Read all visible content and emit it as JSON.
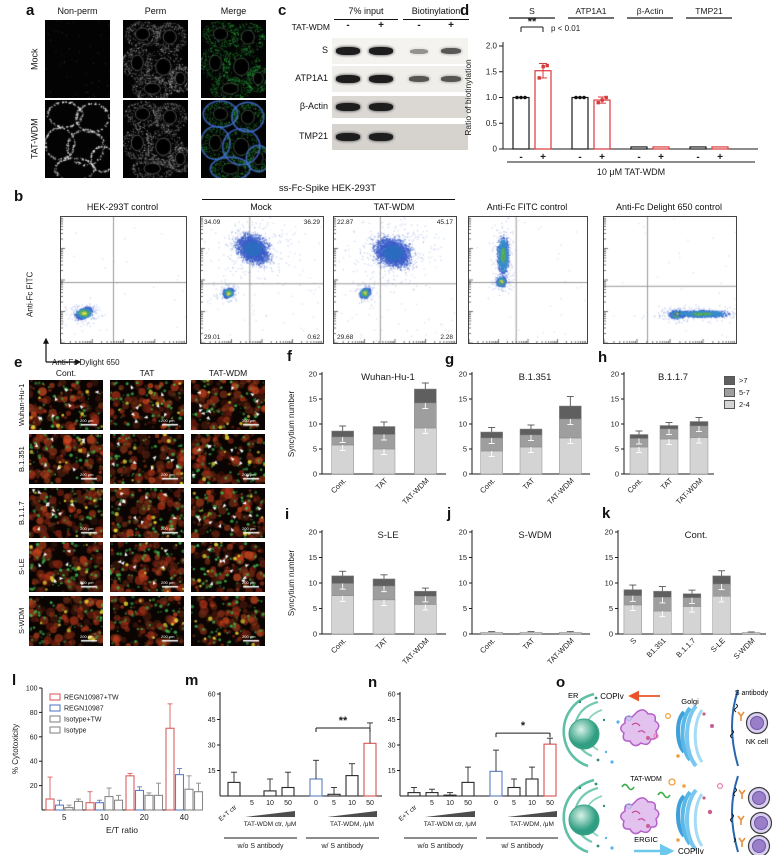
{
  "figure": {
    "panel_labels": {
      "a": "a",
      "b": "b",
      "c": "c",
      "d": "d",
      "e": "e",
      "f": "f",
      "g": "g",
      "h": "h",
      "i": "i",
      "j": "j",
      "k": "k",
      "l": "l",
      "m": "m",
      "n": "n",
      "o": "o"
    },
    "a": {
      "columns": [
        "Non-perm",
        "Perm",
        "Merge"
      ],
      "rows": [
        "Mock",
        "TAT-WDM"
      ]
    },
    "b": {
      "group_title": "ss-Fc-Spike HEK-293T",
      "plots": [
        {
          "title": "HEK-293T control"
        },
        {
          "title": "Mock",
          "quadrants": {
            "tl": "34.09",
            "tr": "36.29",
            "bl": "29.01",
            "br": "0.62"
          }
        },
        {
          "title": "TAT-WDM",
          "quadrants": {
            "tl": "22.87",
            "tr": "45.17",
            "bl": "29.68",
            "br": "2.28"
          }
        },
        {
          "title": "Anti-Fc FITC control"
        },
        {
          "title": "Anti-Fc Delight 650 control"
        }
      ],
      "ylabel": "Anti-Fc FITC",
      "xlabel": "Anti-Fc Dylight 650"
    },
    "c": {
      "group_headers": [
        "7% input",
        "Biotinylation"
      ],
      "treatment_label": "TAT-WDM",
      "signs": [
        "-",
        "+",
        "-",
        "+"
      ],
      "rows": [
        {
          "name": "S",
          "bands": [
            "strong",
            "strong",
            "weak",
            "medium"
          ]
        },
        {
          "name": "ATP1A1",
          "bands": [
            "strong",
            "strong",
            "medium",
            "medium"
          ]
        },
        {
          "name": "β-Actin",
          "bands": [
            "strong",
            "strong",
            "none",
            "none"
          ]
        },
        {
          "name": "TMP21",
          "bands": [
            "strong",
            "strong",
            "none",
            "none"
          ]
        }
      ]
    },
    "e": {
      "columns": [
        "Cont.",
        "TAT",
        "TAT-WDM"
      ],
      "rows": [
        "Wuhan-Hu-1",
        "B.1.351",
        "B.1.1.7",
        "S-LE",
        "S-WDM"
      ],
      "scalebar": "200 μm"
    },
    "syncytium_legend": {
      "entries": [
        ">7",
        "5-7",
        "2-4"
      ]
    },
    "o": {
      "labels": {
        "er": "ER",
        "copiv": "COPIv",
        "golgi": "Golgi",
        "s_antibody": "S antibody",
        "nk_cell": "NK cell",
        "tat_wdm": "TAT-WDM",
        "ergic": "ERGIC",
        "copiiv": "COPIIv"
      }
    }
  },
  "colors": {
    "stack": [
      "#d4d4d4",
      "#9e9e9e",
      "#5f5f5f"
    ],
    "minus_bar": "#1a1a1a",
    "plus_bar": "#d83a3a",
    "blue_bar": "#5b7fc4",
    "red_bar": "#d85050",
    "gray_bar": "#8a8a8a"
  },
  "chart_data": [
    {
      "id": "d",
      "type": "pair-bar",
      "ylabel": "Ratio of biotinylation",
      "ylim": [
        0,
        2
      ],
      "yticks": [
        "0",
        "0.5",
        "1.0",
        "1.5",
        "2.0"
      ],
      "groups": [
        "S",
        "ATP1A1",
        "β-Actin",
        "TMP21"
      ],
      "minus_values": [
        1.0,
        1.0,
        0.04,
        0.04
      ],
      "plus_values": [
        1.52,
        0.95,
        0.04,
        0.04
      ],
      "plus_errors": [
        0.14,
        0.06,
        0,
        0
      ],
      "minus_points": [
        [
          1.0,
          1.0,
          1.0
        ],
        [
          1.0,
          1.0,
          1.0
        ],
        null,
        null
      ],
      "plus_points": [
        [
          1.38,
          1.6,
          1.62
        ],
        [
          0.9,
          0.95,
          1.0
        ],
        null,
        null
      ],
      "bar_signs": [
        "-",
        "+"
      ],
      "xlabel": "10 μM TAT-WDM",
      "sig": "**",
      "sig_note": "p < 0.01"
    },
    {
      "id": "f",
      "type": "stacked-bar",
      "title": "Wuhan-Hu-1",
      "ylabel": "Syncytium number",
      "ylim": [
        0,
        20
      ],
      "yticks": [
        0,
        5,
        10,
        15,
        20
      ],
      "categories": [
        "Cont.",
        "TAT",
        "TAT-WDM"
      ],
      "series": [
        {
          "name": "2-4",
          "values": [
            5.8,
            5.0,
            9.2
          ]
        },
        {
          "name": "5-7",
          "values": [
            1.6,
            2.9,
            5.0
          ]
        },
        {
          "name": ">7",
          "values": [
            1.2,
            1.6,
            2.8
          ]
        }
      ],
      "errors": [
        1.0,
        0.9,
        1.2
      ]
    },
    {
      "id": "g",
      "type": "stacked-bar",
      "title": "B.1.351",
      "ylim": [
        0,
        20
      ],
      "yticks": [
        0,
        5,
        10,
        15,
        20
      ],
      "categories": [
        "Cont.",
        "TAT",
        "TAT-WDM"
      ],
      "series": [
        {
          "name": "2-4",
          "values": [
            4.6,
            5.4,
            7.2
          ]
        },
        {
          "name": "5-7",
          "values": [
            2.6,
            2.4,
            3.8
          ]
        },
        {
          "name": ">7",
          "values": [
            1.2,
            1.2,
            2.6
          ]
        }
      ],
      "errors": [
        0.9,
        0.8,
        1.9
      ]
    },
    {
      "id": "h",
      "type": "stacked-bar",
      "title": "B.1.1.7",
      "ylim": [
        0,
        20
      ],
      "yticks": [
        0,
        5,
        10,
        15,
        20
      ],
      "categories": [
        "Cont.",
        "TAT",
        "TAT-WDM"
      ],
      "series": [
        {
          "name": "2-4",
          "values": [
            5.4,
            7.0,
            7.3
          ]
        },
        {
          "name": "5-7",
          "values": [
            1.7,
            2.0,
            2.3
          ]
        },
        {
          "name": ">7",
          "values": [
            0.8,
            0.7,
            0.9
          ]
        }
      ],
      "errors": [
        0.7,
        0.6,
        0.8
      ]
    },
    {
      "id": "i",
      "type": "stacked-bar",
      "title": "S-LE",
      "ylabel": "Syncytium number",
      "ylim": [
        0,
        20
      ],
      "yticks": [
        0,
        5,
        10,
        15,
        20
      ],
      "categories": [
        "Cont.",
        "TAT",
        "TAT-WDM"
      ],
      "series": [
        {
          "name": "2-4",
          "values": [
            7.5,
            6.7,
            5.8
          ]
        },
        {
          "name": "5-7",
          "values": [
            2.4,
            2.7,
            1.6
          ]
        },
        {
          "name": ">7",
          "values": [
            1.5,
            1.4,
            1.0
          ]
        }
      ],
      "errors": [
        0.9,
        0.8,
        0.6
      ]
    },
    {
      "id": "j",
      "type": "stacked-bar",
      "title": "S-WDM",
      "ylim": [
        0,
        20
      ],
      "yticks": [
        0,
        5,
        10,
        15,
        20
      ],
      "categories": [
        "Cont.",
        "TAT",
        "TAT-WDM"
      ],
      "series": [
        {
          "name": "2-4",
          "values": [
            0.35,
            0.35,
            0.35
          ]
        },
        {
          "name": "5-7",
          "values": [
            0,
            0,
            0
          ]
        },
        {
          "name": ">7",
          "values": [
            0,
            0,
            0
          ]
        }
      ],
      "errors": [
        0.12,
        0.12,
        0.12
      ]
    },
    {
      "id": "k",
      "type": "stacked-bar",
      "title": "Cont.",
      "ylim": [
        0,
        20
      ],
      "yticks": [
        0,
        5,
        10,
        15,
        20
      ],
      "categories": [
        "S",
        "B1.351",
        "B.1.1.7",
        "S-LE",
        "S-WDM"
      ],
      "series": [
        {
          "name": "2-4",
          "values": [
            5.7,
            4.5,
            5.4,
            7.4,
            0.3
          ]
        },
        {
          "name": "5-7",
          "values": [
            1.8,
            2.7,
            1.7,
            2.4,
            0
          ]
        },
        {
          "name": ">7",
          "values": [
            1.2,
            1.2,
            0.8,
            1.6,
            0
          ]
        }
      ],
      "errors": [
        0.9,
        0.9,
        0.7,
        1.0,
        0.1
      ]
    },
    {
      "id": "l",
      "type": "grouped-bar",
      "ylabel": "% Cytotoxicity",
      "xlabel": "E/T ratio",
      "ylim": [
        0,
        100
      ],
      "yticks": [
        20,
        40,
        60,
        80,
        100
      ],
      "categories": [
        "5",
        "10",
        "20",
        "40"
      ],
      "series": [
        {
          "name": "REGN10987+TW",
          "color": "#d96060",
          "values": [
            9,
            6,
            28,
            67
          ],
          "errors": [
            18,
            9,
            2,
            20
          ]
        },
        {
          "name": "REGN10987",
          "color": "#5b7fc4",
          "values": [
            4,
            6,
            16,
            29
          ],
          "errors": [
            4,
            2,
            3,
            5
          ]
        },
        {
          "name": "Isotype+TW",
          "color": "#8a8a8a",
          "values": [
            2,
            11,
            12,
            17
          ],
          "errors": [
            2,
            7,
            2,
            11
          ]
        },
        {
          "name": "Isotype",
          "color": "#8a8a8a",
          "values": [
            7,
            8,
            12,
            15
          ],
          "errors": [
            2,
            4,
            10,
            7
          ]
        }
      ]
    },
    {
      "id": "m",
      "type": "bar",
      "ylim": [
        0,
        60
      ],
      "yticks": [
        15,
        30,
        45,
        60
      ],
      "categories": [
        "E+T ctr",
        "5",
        "10",
        "50",
        "0",
        "5",
        "10",
        "50"
      ],
      "values": [
        8,
        0,
        3,
        5,
        10,
        1,
        12,
        31
      ],
      "errors": [
        6,
        0,
        7,
        9,
        11,
        4,
        7,
        12
      ],
      "bar_colors": [
        "k",
        "k",
        "k",
        "k",
        "b",
        "k",
        "k",
        "r"
      ],
      "sig": "**",
      "sig_from": 4,
      "sig_to": 7,
      "ramp_labels": [
        "TAT-WDM ctr, /μM",
        "TAT-WDM,  /μM"
      ],
      "group_labels": [
        "w/o S antibody",
        "w/ S antibody"
      ]
    },
    {
      "id": "n",
      "type": "bar",
      "ylim": [
        0,
        60
      ],
      "yticks": [
        15,
        30,
        45,
        60
      ],
      "categories": [
        "E+T ctr",
        "5",
        "10",
        "50",
        "0",
        "5",
        "10",
        "50"
      ],
      "values": [
        2,
        2,
        0.5,
        8,
        14.5,
        5,
        10,
        30.5
      ],
      "errors": [
        3,
        2,
        1.5,
        9,
        12.5,
        5,
        7,
        3.5
      ],
      "bar_colors": [
        "k",
        "k",
        "k",
        "k",
        "b",
        "k",
        "k",
        "r"
      ],
      "sig": "*",
      "sig_from": 4,
      "sig_to": 7,
      "ramp_labels": [
        "TAT-WDM ctr, /μM",
        "TAT-WDM,  /μM"
      ],
      "group_labels": [
        "w/o S antibody",
        "w/ S antibody"
      ]
    }
  ]
}
